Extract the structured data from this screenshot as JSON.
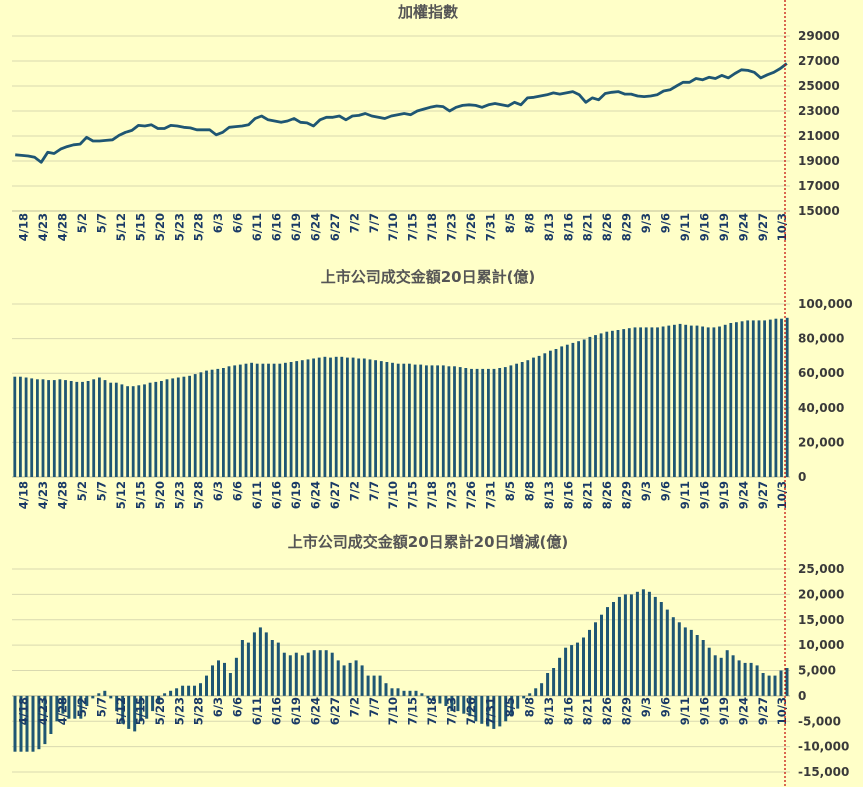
{
  "colors": {
    "background": "#FFFFC8",
    "series": "#1F5673",
    "grid": "#D9D9B0",
    "title": "#555555",
    "marker_line": "#C00000"
  },
  "chart_data": [
    {
      "type": "line",
      "title": "加權指數",
      "ylim": [
        15000,
        29000
      ],
      "yticks": [
        15000,
        17000,
        19000,
        21000,
        23000,
        25000,
        27000,
        29000
      ],
      "ytick_labels": [
        "15000",
        "17000",
        "19000",
        "21000",
        "23000",
        "25000",
        "27000",
        "29000"
      ],
      "xtick_labels": [
        "4/18",
        "4/23",
        "4/28",
        "5/2",
        "5/7",
        "5/12",
        "5/15",
        "5/20",
        "5/23",
        "5/28",
        "6/3",
        "6/6",
        "6/11",
        "6/16",
        "6/19",
        "6/24",
        "6/27",
        "7/2",
        "7/7",
        "7/10",
        "7/15",
        "7/18",
        "7/23",
        "7/26",
        "7/31",
        "8/5",
        "8/8",
        "8/13",
        "8/16",
        "8/21",
        "8/26",
        "8/29",
        "9/3",
        "9/6",
        "9/11",
        "9/16",
        "9/19",
        "9/24",
        "9/27",
        "10/3"
      ],
      "grid": true,
      "values": [
        19500,
        19450,
        19400,
        19300,
        18900,
        19700,
        19600,
        19950,
        20150,
        20300,
        20350,
        20900,
        20600,
        20600,
        20650,
        20700,
        21050,
        21300,
        21450,
        21850,
        21800,
        21900,
        21600,
        21600,
        21850,
        21800,
        21700,
        21650,
        21500,
        21500,
        21500,
        21100,
        21300,
        21700,
        21750,
        21800,
        21900,
        22400,
        22600,
        22300,
        22200,
        22100,
        22200,
        22400,
        22100,
        22050,
        21800,
        22300,
        22500,
        22500,
        22600,
        22300,
        22600,
        22650,
        22800,
        22600,
        22500,
        22400,
        22600,
        22700,
        22800,
        22700,
        23000,
        23150,
        23300,
        23400,
        23350,
        23000,
        23300,
        23450,
        23500,
        23450,
        23300,
        23500,
        23600,
        23500,
        23400,
        23700,
        23500,
        24050,
        24100,
        24200,
        24300,
        24450,
        24350,
        24450,
        24550,
        24300,
        23700,
        24050,
        23900,
        24400,
        24500,
        24550,
        24350,
        24350,
        24200,
        24150,
        24200,
        24300,
        24600,
        24700,
        25000,
        25300,
        25300,
        25600,
        25500,
        25700,
        25600,
        25850,
        25650,
        26000,
        26300,
        26250,
        26100,
        25650,
        25900,
        26100,
        26400,
        26800
      ]
    },
    {
      "type": "bar",
      "title": "上市公司成交金額20日累計(億)",
      "ylim": [
        0,
        100000
      ],
      "yticks": [
        0,
        20000,
        40000,
        60000,
        80000,
        100000
      ],
      "ytick_labels": [
        "0",
        "20,000",
        "40,000",
        "60,000",
        "80,000",
        "100,000"
      ],
      "xtick_labels": [
        "4/18",
        "4/23",
        "4/28",
        "5/2",
        "5/7",
        "5/12",
        "5/15",
        "5/20",
        "5/23",
        "5/28",
        "6/3",
        "6/6",
        "6/11",
        "6/16",
        "6/19",
        "6/24",
        "6/27",
        "7/2",
        "7/7",
        "7/10",
        "7/15",
        "7/18",
        "7/23",
        "7/26",
        "7/31",
        "8/5",
        "8/8",
        "8/13",
        "8/16",
        "8/21",
        "8/26",
        "8/29",
        "9/3",
        "9/6",
        "9/11",
        "9/16",
        "9/19",
        "9/24",
        "9/27",
        "10/3"
      ],
      "grid": true,
      "values": [
        58000,
        58000,
        57500,
        57000,
        56500,
        56500,
        56000,
        56000,
        56500,
        56000,
        55500,
        55000,
        55000,
        55500,
        56500,
        57500,
        56000,
        54500,
        54500,
        53500,
        52500,
        52500,
        53000,
        53500,
        54500,
        55000,
        55500,
        56500,
        57000,
        57500,
        58000,
        58500,
        59500,
        60500,
        61500,
        62000,
        62500,
        63000,
        64000,
        64500,
        65000,
        65500,
        66000,
        65500,
        65500,
        65500,
        65500,
        65500,
        66000,
        66500,
        67000,
        67500,
        68000,
        68500,
        69000,
        69500,
        69000,
        69500,
        69500,
        69000,
        69000,
        68500,
        68500,
        68000,
        67500,
        67000,
        66500,
        66000,
        65500,
        65500,
        65500,
        65000,
        65000,
        64500,
        64500,
        64500,
        64500,
        64000,
        64000,
        63500,
        63000,
        62500,
        62500,
        62500,
        62500,
        62500,
        63000,
        63500,
        64500,
        65500,
        66500,
        67500,
        69000,
        70000,
        71500,
        73000,
        74000,
        75500,
        76500,
        77500,
        78500,
        79500,
        81000,
        82000,
        83000,
        84000,
        84500,
        85000,
        85500,
        86000,
        86500,
        86500,
        86500,
        86500,
        86500,
        87000,
        87500,
        88000,
        88500,
        88000,
        87500,
        87500,
        87000,
        86500,
        86500,
        87000,
        88000,
        89000,
        89500,
        90000,
        90500,
        90500,
        90500,
        90500,
        91000,
        91500,
        91500,
        92000
      ]
    },
    {
      "type": "bar",
      "title": "上市公司成交金額20日累計20日增減(億)",
      "ylim": [
        -15000,
        25000
      ],
      "yticks": [
        -15000,
        -10000,
        -5000,
        0,
        5000,
        10000,
        15000,
        20000,
        25000
      ],
      "ytick_labels": [
        "-15,000",
        "-10,000",
        "-5,000",
        "0",
        "5,000",
        "10,000",
        "15,000",
        "20,000",
        "25,000"
      ],
      "xtick_labels": [
        "4/18",
        "4/23",
        "4/28",
        "5/2",
        "5/7",
        "5/12",
        "5/15",
        "5/20",
        "5/23",
        "5/28",
        "6/3",
        "6/6",
        "6/11",
        "6/16",
        "6/19",
        "6/24",
        "6/27",
        "7/2",
        "7/7",
        "7/10",
        "7/15",
        "7/18",
        "7/23",
        "7/26",
        "7/31",
        "8/5",
        "8/8",
        "8/13",
        "8/16",
        "8/21",
        "8/26",
        "8/29",
        "9/3",
        "9/6",
        "9/11",
        "9/16",
        "9/19",
        "9/24",
        "9/27",
        "10/3"
      ],
      "grid": true,
      "values": [
        -11000,
        -11000,
        -11000,
        -11000,
        -10500,
        -9500,
        -7500,
        -5000,
        -3500,
        -4500,
        -4500,
        -4500,
        -2000,
        -500,
        500,
        1000,
        -500,
        -3000,
        -5500,
        -6500,
        -7000,
        -5000,
        -4500,
        -3000,
        -1500,
        500,
        1000,
        1500,
        2000,
        2000,
        2000,
        2500,
        4000,
        6000,
        7000,
        6500,
        4500,
        7500,
        11000,
        10500,
        12500,
        13500,
        12500,
        11000,
        10500,
        8500,
        8000,
        8500,
        8000,
        8500,
        9000,
        9000,
        9000,
        8500,
        7000,
        6000,
        6500,
        7000,
        6000,
        4000,
        4000,
        4000,
        2500,
        1500,
        1500,
        1000,
        1000,
        1000,
        500,
        -500,
        -1000,
        -1500,
        -2000,
        -3000,
        -3000,
        -3500,
        -4000,
        -5000,
        -5500,
        -6000,
        -6500,
        -6000,
        -5000,
        -4000,
        -2500,
        -500,
        500,
        1500,
        2500,
        4500,
        5500,
        7500,
        9500,
        10000,
        10500,
        11500,
        13000,
        14500,
        16000,
        17500,
        18500,
        19500,
        20000,
        20000,
        20500,
        21000,
        20500,
        19500,
        18500,
        17000,
        15500,
        14500,
        13500,
        13000,
        12000,
        11000,
        9500,
        8000,
        7500,
        9000,
        8000,
        7000,
        6500,
        6500,
        6000,
        4500,
        4000,
        4000,
        5000,
        5500
      ]
    }
  ]
}
